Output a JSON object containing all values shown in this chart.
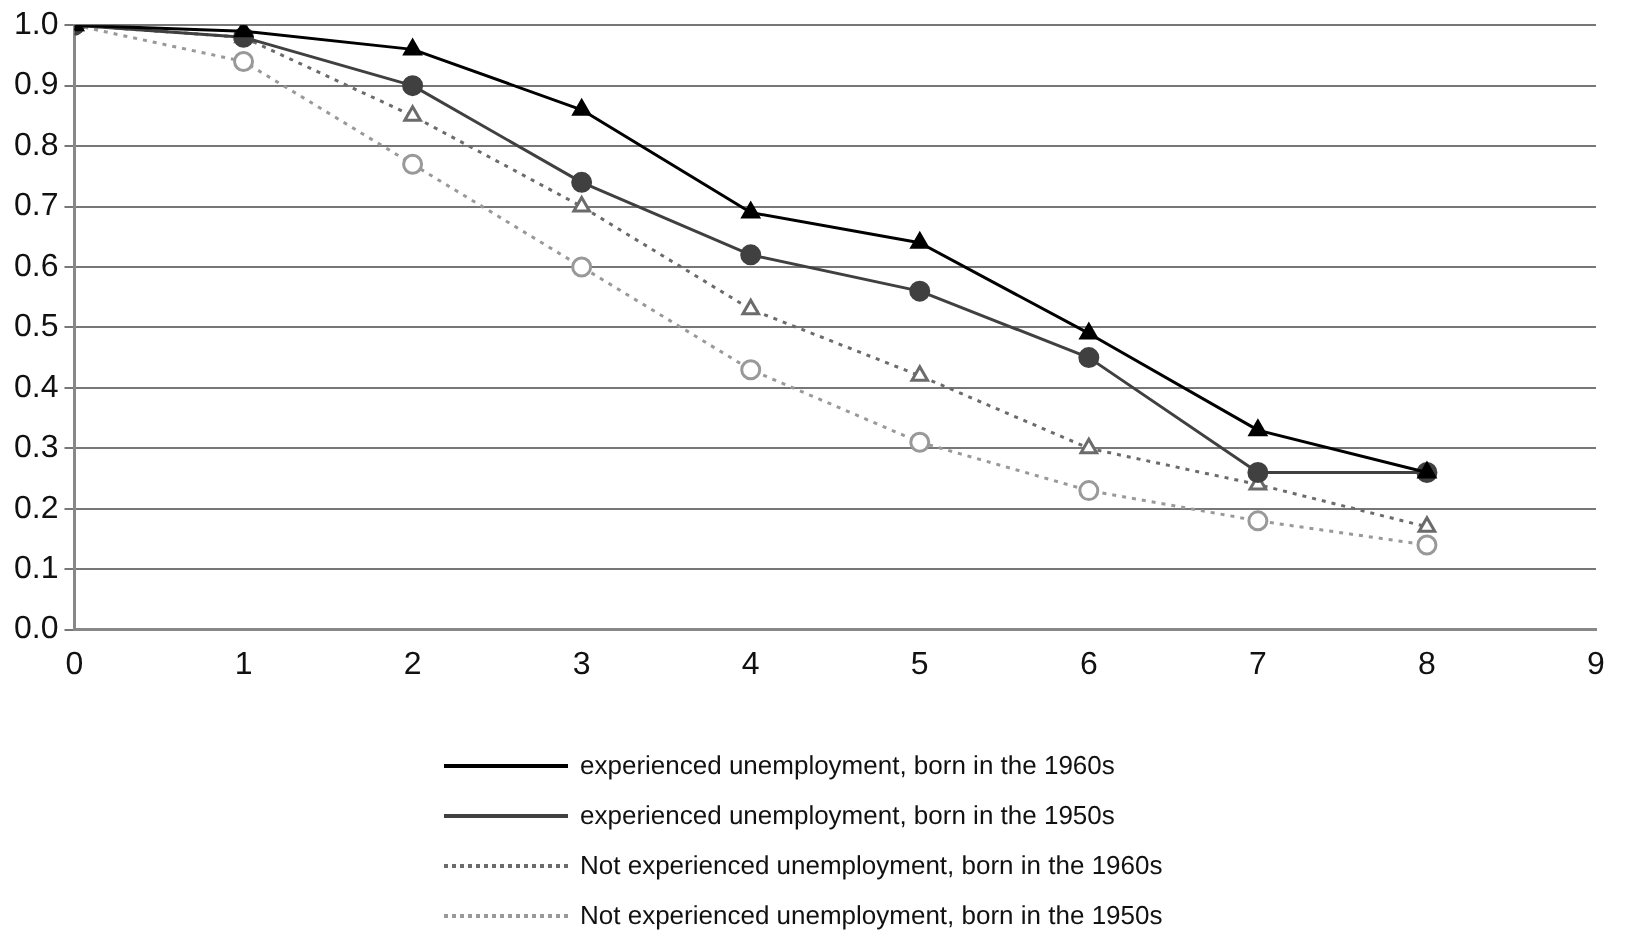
{
  "chart_data": {
    "type": "line",
    "x": [
      0,
      1,
      2,
      3,
      4,
      5,
      6,
      7,
      8
    ],
    "series": [
      {
        "name": "experienced unemployment, born in the 1960s",
        "color": "#000000",
        "marker": "triangle",
        "line_style": "solid",
        "values": [
          1.0,
          0.99,
          0.96,
          0.86,
          0.69,
          0.64,
          0.49,
          0.33,
          0.26
        ]
      },
      {
        "name": "experienced unemployment, born in the 1950s",
        "color": "#404040",
        "marker": "circle",
        "line_style": "solid",
        "values": [
          1.0,
          0.98,
          0.9,
          0.74,
          0.62,
          0.56,
          0.45,
          0.26,
          0.26
        ]
      },
      {
        "name": "Not experienced unemployment, born in the 1960s",
        "color": "#6b6b6b",
        "marker": "triangle",
        "line_style": "dotted",
        "values": [
          1.0,
          0.98,
          0.85,
          0.7,
          0.53,
          0.42,
          0.3,
          0.24,
          0.17
        ]
      },
      {
        "name": "Not experienced unemployment, born in the 1950s",
        "color": "#999999",
        "marker": "circle",
        "line_style": "dotted",
        "values": [
          1.0,
          0.94,
          0.77,
          0.6,
          0.43,
          0.31,
          0.23,
          0.18,
          0.14
        ]
      }
    ],
    "xlim": [
      0,
      9
    ],
    "xticks": [
      0,
      1,
      2,
      3,
      4,
      5,
      6,
      7,
      8,
      9
    ],
    "ylim": [
      0,
      1
    ],
    "yticks": [
      {
        "value": 0,
        "label": "0.0"
      },
      {
        "value": 0.1,
        "label": "0.1"
      },
      {
        "value": 0.2,
        "label": "0.2"
      },
      {
        "value": 0.3,
        "label": "0.3"
      },
      {
        "value": 0.4,
        "label": "0.4"
      },
      {
        "value": 0.5,
        "label": "0.5"
      },
      {
        "value": 0.6,
        "label": "0.6"
      },
      {
        "value": 0.7,
        "label": "0.7"
      },
      {
        "value": 0.8,
        "label": "0.8"
      },
      {
        "value": 0.9,
        "label": "0.9"
      },
      {
        "value": 1,
        "label": "1.0"
      }
    ],
    "grid": "y",
    "legend": "bottom"
  }
}
